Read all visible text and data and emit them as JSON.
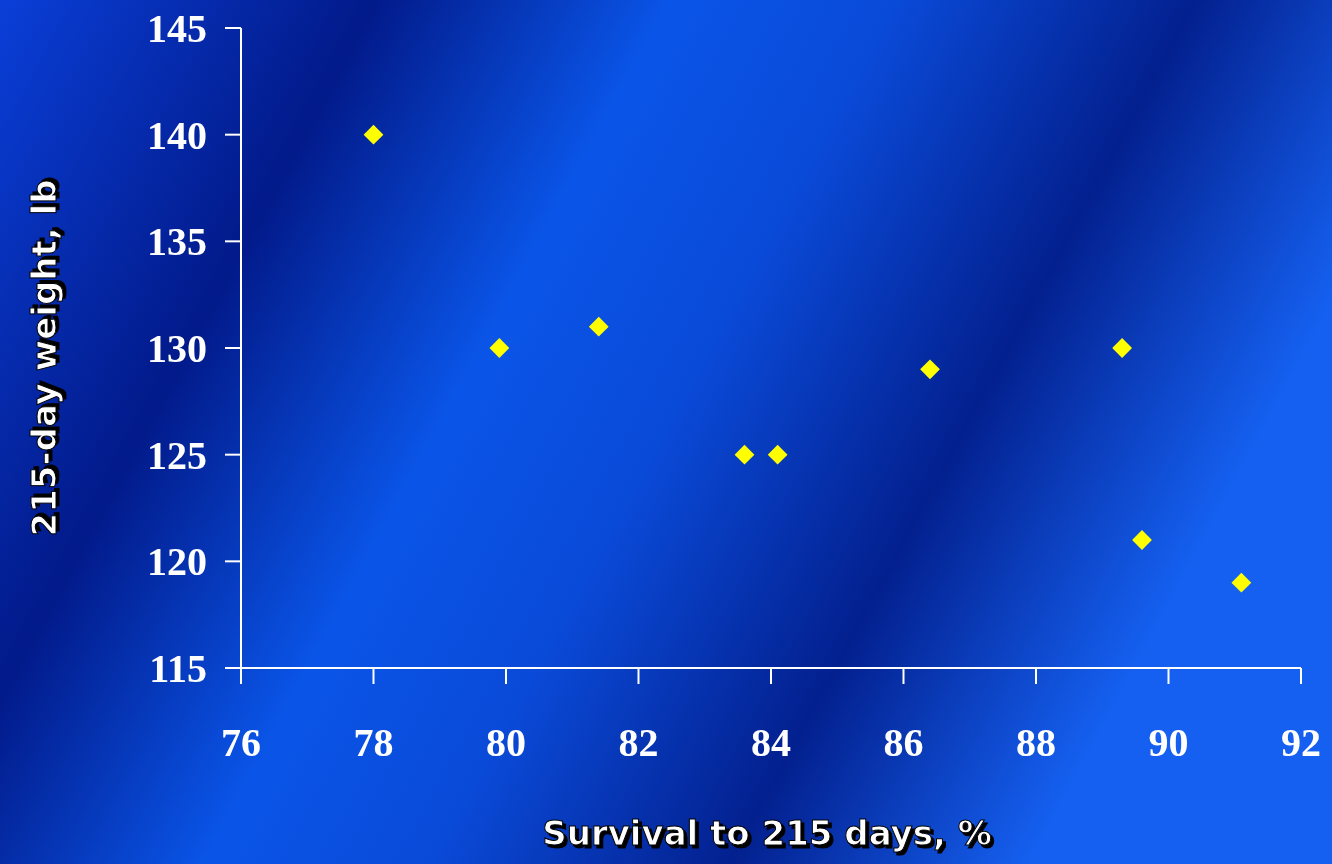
{
  "chart_data": {
    "type": "scatter",
    "xlabel": "Survival to 215 days, %",
    "ylabel": "215-day weight, lb",
    "x": [
      78.0,
      79.9,
      81.4,
      83.6,
      84.1,
      86.4,
      89.3,
      89.6,
      91.1
    ],
    "series": [
      {
        "color": "#ffff00",
        "values": [
          140,
          130,
          131,
          125,
          125,
          129,
          130,
          121,
          119
        ]
      }
    ],
    "xlim": [
      76,
      92
    ],
    "xticks": [
      76,
      78,
      80,
      82,
      84,
      86,
      88,
      90,
      92
    ],
    "ylim": [
      115,
      145
    ],
    "yticks": [
      115,
      120,
      125,
      130,
      135,
      140,
      145
    ],
    "marker": "diamond",
    "grid": false
  }
}
